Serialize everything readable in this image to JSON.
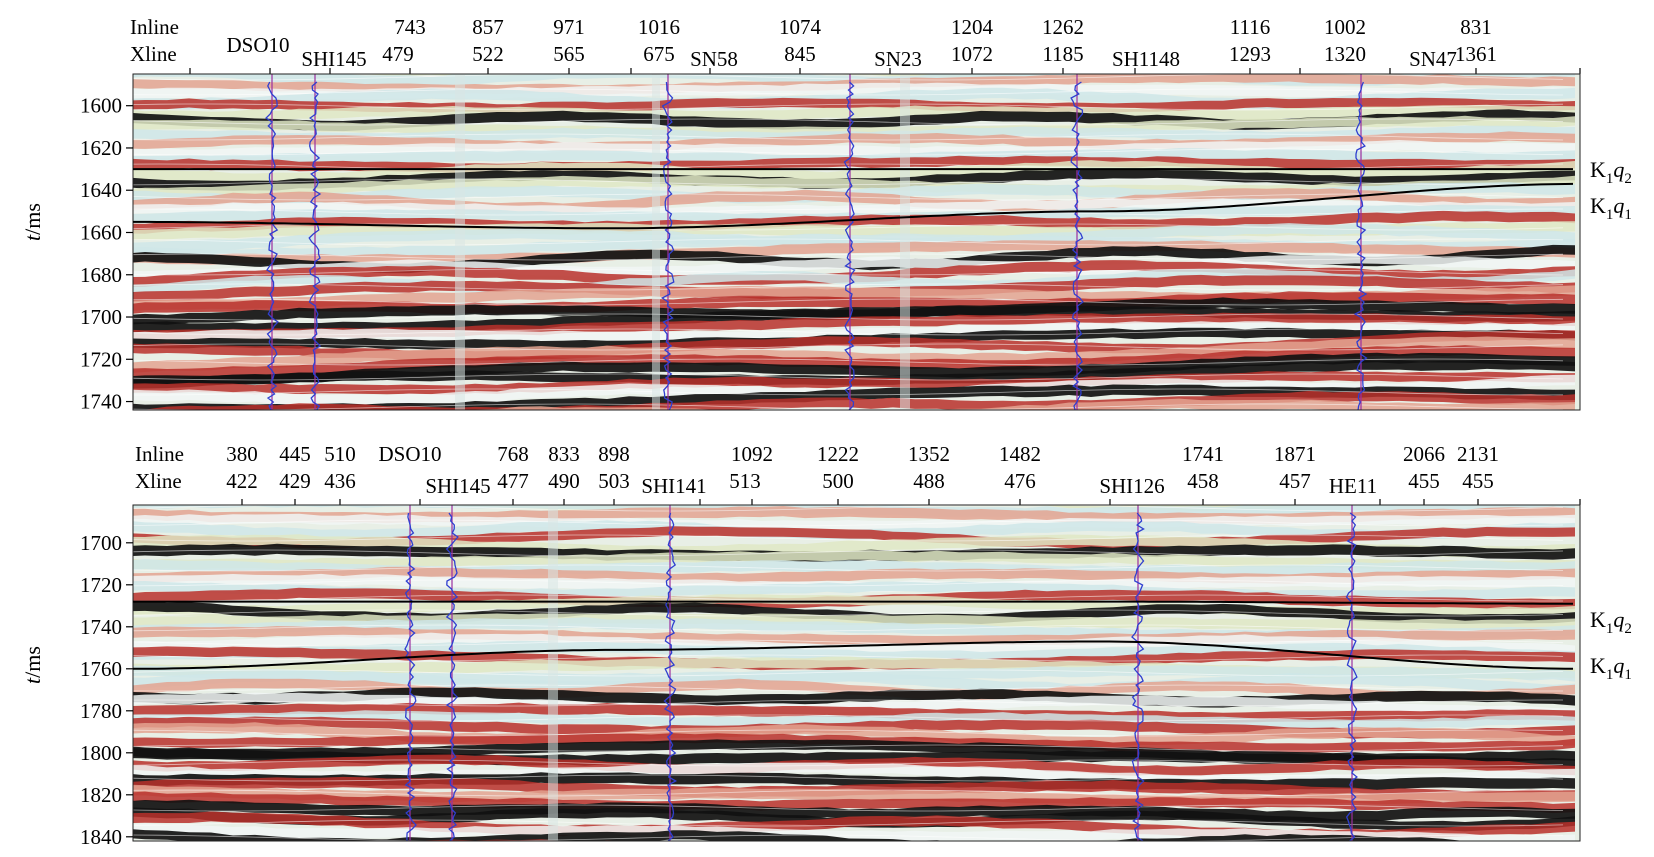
{
  "axis_title": {
    "italic": "t",
    "rest": "/ms"
  },
  "colors": {
    "band_black": "#111111",
    "band_red": "#b8302a",
    "band_light_red": "#e3a391",
    "band_green": "#dfe8c4",
    "band_cyan": "#cfe6e8",
    "band_white": "#f1f6f4",
    "horizon_line": "#000000",
    "well_line": "#9b2fa0",
    "well_log": "#2f3fd0"
  },
  "panels": [
    {
      "id": "top",
      "header_labels": [
        "Inline",
        "Xline"
      ],
      "t_range": [
        1585,
        1744
      ],
      "y_ticks": [
        1600,
        1620,
        1640,
        1660,
        1680,
        1700,
        1720,
        1740
      ],
      "trace_labels": [
        {
          "inline": "743",
          "xline": "479"
        },
        {
          "inline": "857",
          "xline": "522"
        },
        {
          "inline": "971",
          "xline": "565"
        },
        {
          "inline": "1016",
          "xline": "675"
        },
        {
          "inline": "1074",
          "xline": "845"
        },
        {
          "inline": "1204",
          "xline": "1072"
        },
        {
          "inline": "1262",
          "xline": "1185"
        },
        {
          "inline": "1116",
          "xline": "1293"
        },
        {
          "inline": "1002",
          "xline": "1320"
        },
        {
          "inline": "831",
          "xline": "1361"
        }
      ],
      "wells": [
        "DSO10",
        "SHI145",
        "SN58",
        "SN23",
        "SH1148",
        "SN47"
      ],
      "horizons": [
        {
          "base": "K",
          "sub1": "1",
          "letter": "q",
          "sub2": "2",
          "t": [
            1630,
            1630,
            1630,
            1630
          ]
        },
        {
          "base": "K",
          "sub1": "1",
          "letter": "q",
          "sub2": "1",
          "t": [
            1655,
            1658,
            1650,
            1637
          ]
        }
      ]
    },
    {
      "id": "bottom",
      "header_labels": [
        "Inline",
        "Xline"
      ],
      "t_range": [
        1682,
        1842
      ],
      "y_ticks": [
        1700,
        1720,
        1740,
        1760,
        1780,
        1800,
        1820,
        1840
      ],
      "trace_labels": [
        {
          "inline": "380",
          "xline": "422"
        },
        {
          "inline": "445",
          "xline": "429"
        },
        {
          "inline": "510",
          "xline": "436"
        },
        {
          "inline": "768",
          "xline": "477"
        },
        {
          "inline": "833",
          "xline": "490"
        },
        {
          "inline": "898",
          "xline": "503"
        },
        {
          "inline": "1092",
          "xline": "513"
        },
        {
          "inline": "1222",
          "xline": "500"
        },
        {
          "inline": "1352",
          "xline": "488"
        },
        {
          "inline": "1482",
          "xline": "476"
        },
        {
          "inline": "1741",
          "xline": "458"
        },
        {
          "inline": "1871",
          "xline": "457"
        },
        {
          "inline": "2066",
          "xline": "455"
        },
        {
          "inline": "2131",
          "xline": "455"
        }
      ],
      "wells": [
        "DSO10",
        "SHI145",
        "SHI141",
        "SHI126",
        "HE11"
      ],
      "horizons": [
        {
          "base": "K",
          "sub1": "1",
          "letter": "q",
          "sub2": "2",
          "t": [
            1728,
            1728,
            1728,
            1729
          ]
        },
        {
          "base": "K",
          "sub1": "1",
          "letter": "q",
          "sub2": "1",
          "t": [
            1760,
            1751,
            1747,
            1760
          ]
        }
      ]
    }
  ]
}
